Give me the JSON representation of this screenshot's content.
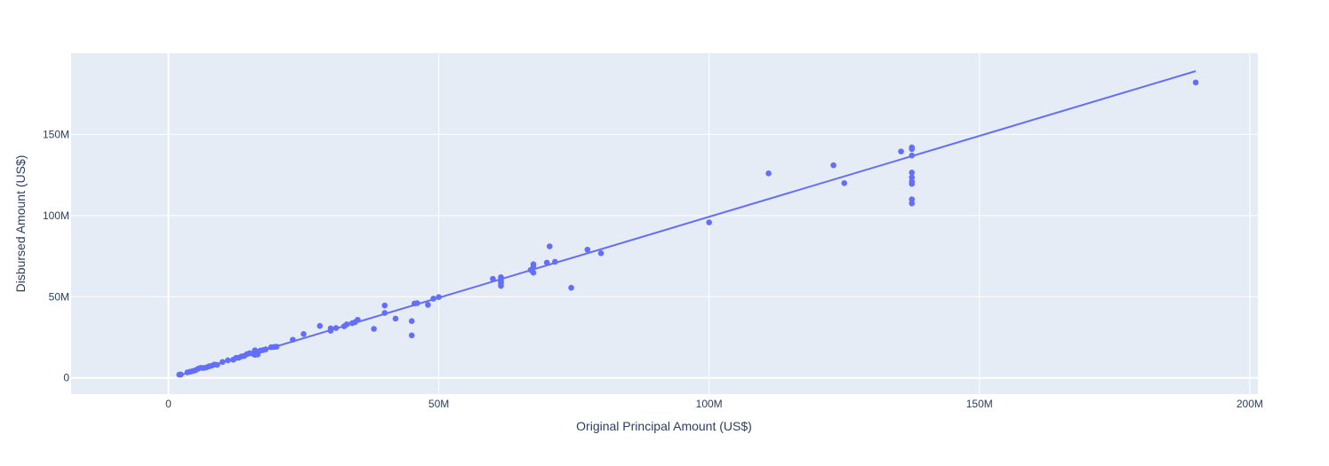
{
  "chart_data": {
    "type": "scatter",
    "title": "",
    "xlabel": "Original Principal Amount (US$)",
    "ylabel": "Disbursed Amount (US$)",
    "xlim": [
      -18000000,
      201500000
    ],
    "ylim": [
      -10000000,
      200000000
    ],
    "grid": true,
    "x_ticks": [
      {
        "value": 0,
        "label": "0"
      },
      {
        "value": 50000000,
        "label": "50M"
      },
      {
        "value": 100000000,
        "label": "100M"
      },
      {
        "value": 150000000,
        "label": "150M"
      },
      {
        "value": 200000000,
        "label": "200M"
      }
    ],
    "y_ticks": [
      {
        "value": 0,
        "label": "0"
      },
      {
        "value": 50000000,
        "label": "50M"
      },
      {
        "value": 100000000,
        "label": "100M"
      },
      {
        "value": 150000000,
        "label": "150M"
      }
    ],
    "series": [
      {
        "mode": "markers",
        "color": "#636efa",
        "points": [
          [
            2000000,
            2000000
          ],
          [
            2300000,
            2100000
          ],
          [
            3500000,
            3400000
          ],
          [
            4000000,
            3800000
          ],
          [
            4500000,
            4200000
          ],
          [
            5000000,
            4700000
          ],
          [
            5500000,
            5600000
          ],
          [
            6000000,
            6200000
          ],
          [
            6500000,
            6100000
          ],
          [
            7000000,
            6400000
          ],
          [
            7500000,
            7100000
          ],
          [
            8000000,
            7500000
          ],
          [
            8500000,
            8200000
          ],
          [
            9000000,
            8000000
          ],
          [
            10000000,
            9800000
          ],
          [
            11000000,
            10800000
          ],
          [
            12000000,
            11200000
          ],
          [
            12500000,
            12300000
          ],
          [
            13000000,
            12400000
          ],
          [
            13500000,
            13200000
          ],
          [
            14000000,
            13500000
          ],
          [
            14500000,
            14600000
          ],
          [
            15000000,
            15200000
          ],
          [
            15500000,
            15000000
          ],
          [
            16000000,
            14200000
          ],
          [
            16000000,
            17000000
          ],
          [
            16500000,
            14400000
          ],
          [
            17000000,
            16800000
          ],
          [
            17500000,
            17100000
          ],
          [
            18000000,
            17600000
          ],
          [
            19000000,
            18900000
          ],
          [
            19500000,
            19000000
          ],
          [
            20000000,
            19200000
          ],
          [
            23000000,
            23500000
          ],
          [
            25000000,
            27000000
          ],
          [
            28000000,
            32000000
          ],
          [
            30000000,
            29000000
          ],
          [
            30000000,
            30500000
          ],
          [
            31000000,
            30700000
          ],
          [
            32500000,
            31800000
          ],
          [
            33000000,
            33000000
          ],
          [
            34000000,
            33700000
          ],
          [
            34500000,
            34300000
          ],
          [
            35000000,
            35800000
          ],
          [
            38000000,
            30200000
          ],
          [
            40000000,
            44600000
          ],
          [
            40000000,
            40000000
          ],
          [
            42000000,
            36500000
          ],
          [
            45000000,
            26200000
          ],
          [
            45000000,
            35000000
          ],
          [
            45500000,
            45800000
          ],
          [
            46000000,
            46000000
          ],
          [
            48000000,
            45000000
          ],
          [
            49000000,
            48800000
          ],
          [
            50000000,
            49800000
          ],
          [
            60000000,
            61000000
          ],
          [
            61500000,
            56700000
          ],
          [
            61500000,
            58200000
          ],
          [
            61500000,
            59400000
          ],
          [
            61500000,
            60800000
          ],
          [
            61500000,
            62000000
          ],
          [
            67000000,
            66500000
          ],
          [
            67500000,
            64800000
          ],
          [
            67500000,
            68300000
          ],
          [
            67500000,
            70000000
          ],
          [
            70000000,
            71000000
          ],
          [
            70500000,
            81000000
          ],
          [
            71500000,
            71500000
          ],
          [
            74500000,
            55500000
          ],
          [
            77500000,
            79000000
          ],
          [
            80000000,
            76800000
          ],
          [
            100000000,
            95800000
          ],
          [
            111000000,
            126000000
          ],
          [
            123000000,
            131000000
          ],
          [
            125000000,
            120000000
          ],
          [
            135500000,
            139500000
          ],
          [
            137500000,
            107500000
          ],
          [
            137500000,
            110000000
          ],
          [
            137500000,
            119500000
          ],
          [
            137500000,
            121000000
          ],
          [
            137500000,
            123500000
          ],
          [
            137500000,
            126500000
          ],
          [
            137500000,
            137000000
          ],
          [
            137500000,
            141000000
          ],
          [
            137500000,
            142000000
          ],
          [
            190000000,
            182000000
          ]
        ]
      },
      {
        "mode": "lines",
        "color": "#636efa",
        "points": [
          [
            2000000,
            1500000
          ],
          [
            190000000,
            189000000
          ]
        ]
      }
    ]
  }
}
